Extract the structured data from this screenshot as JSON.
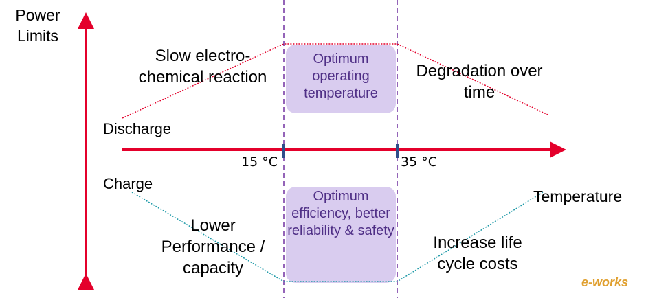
{
  "y_axis_label": "Power Limits",
  "x_axis_label": "Temperature",
  "upper_label": "Discharge",
  "lower_label": "Charge",
  "ticks": [
    "15 °C",
    "35 °C"
  ],
  "upper": {
    "left_note": "Slow electro-chemical reaction",
    "box": "Optimum operating temperature",
    "right_note": "Degradation over time"
  },
  "lower": {
    "left_note": "Lower Performance / capacity",
    "box": "Optimum efficiency, better reliability & safety",
    "right_note": "Increase life cycle costs"
  },
  "watermark": "e-works"
}
